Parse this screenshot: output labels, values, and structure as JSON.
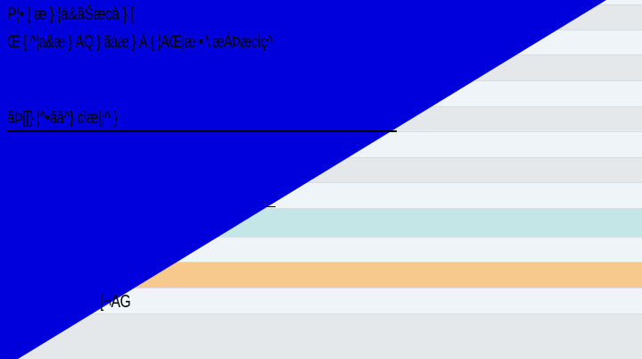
{
  "screen": {
    "colors": {
      "overlay": "#0000dd",
      "row_light": "#eef4f8",
      "row_grey": "#e5e8eb",
      "row_highlight_teal": "#c5e6e6",
      "row_highlight_orange": "#f8c98c"
    }
  },
  "text_lines": {
    "line_1": "P¦• ] æ } ¦à&ãŠæcà } [",
    "line_2": "Œ { ^¦à&æ } ÀQ } ãàæ } À { ¦ÀŒ|æ • \\ æÁÞæcìç^",
    "line_3": "ãÞ[[} ¦^•ãà^} cìæ|¦^ }",
    "line_4": "[¬AG"
  }
}
